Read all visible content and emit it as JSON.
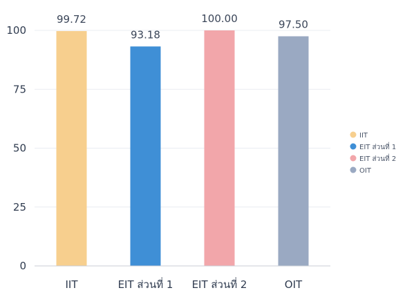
{
  "chart_data": {
    "type": "bar",
    "categories": [
      "IIT",
      "EIT ส่วนที่ 1",
      "EIT ส่วนที่ 2",
      "OIT"
    ],
    "values": [
      99.72,
      93.18,
      100.0,
      97.5
    ],
    "value_labels": [
      "99.72",
      "93.18",
      "100.00",
      "97.50"
    ],
    "colors": [
      "#f7cf8e",
      "#3f8fd6",
      "#f2a6aa",
      "#9aa9c2"
    ],
    "title": "",
    "xlabel": "",
    "ylabel": "",
    "ylim": [
      0,
      100
    ],
    "yticks": [
      "0",
      "25",
      "50",
      "75",
      "100"
    ],
    "grid": true,
    "legend": {
      "placement": "right",
      "entries": [
        "IIT",
        "EIT ส่วนที่ 1",
        "EIT ส่วนที่ 2",
        "OIT"
      ]
    }
  }
}
